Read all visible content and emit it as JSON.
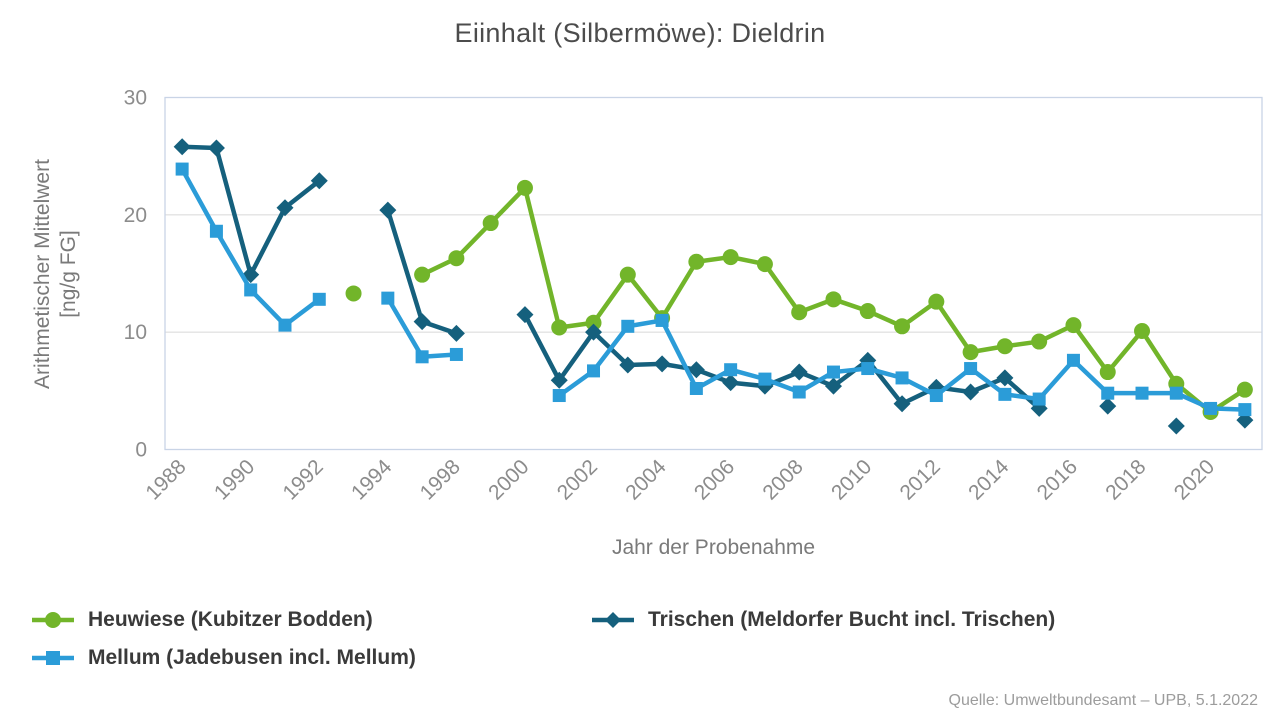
{
  "title": "Eiinhalt (Silbermöwe): Dieldrin",
  "source": "Quelle: Umweltbundesamt – UPB, 5.1.2022",
  "axes": {
    "x_title": "Jahr der Probenahme",
    "y_title_line1": "Arithmetischer Mittelwert",
    "y_title_line2": "[ng/g FG]"
  },
  "colors": {
    "heuwiese_green": "#72b52a",
    "mellum_blue": "#2b9cd8",
    "trischen_darkblue": "#15607d",
    "grid": "#e3e3e3",
    "plot_border": "#c9d4e6",
    "tick_text": "#8c8c8c"
  },
  "chart_data": {
    "type": "line",
    "title": "Eiinhalt (Silbermöwe): Dieldrin",
    "xlabel": "Jahr der Probenahme",
    "ylabel": "Arithmetischer Mittelwert [ng/g FG]",
    "ylim": [
      0,
      30
    ],
    "yticks": [
      0,
      10,
      20,
      30
    ],
    "grid": true,
    "legend_position": "bottom",
    "x_label_every": 2,
    "categories": [
      "1988",
      "1989",
      "1990",
      "1991",
      "1992",
      "1993",
      "1994",
      "1995",
      "1998",
      "1999",
      "2000",
      "2001",
      "2002",
      "2003",
      "2004",
      "2005",
      "2006",
      "2007",
      "2008",
      "2009",
      "2010",
      "2011",
      "2012",
      "2013",
      "2014",
      "2015",
      "2016",
      "2017",
      "2018",
      "2019",
      "2020",
      "2021"
    ],
    "series": [
      {
        "name": "Heuwiese (Kubitzer Bodden)",
        "color": "#72b52a",
        "marker": "circle",
        "values": [
          null,
          null,
          null,
          null,
          null,
          13.3,
          null,
          14.9,
          16.3,
          19.3,
          22.3,
          10.4,
          10.8,
          14.9,
          11.2,
          16.0,
          16.4,
          15.8,
          11.7,
          12.8,
          11.8,
          10.5,
          12.6,
          8.3,
          8.8,
          9.2,
          10.6,
          6.6,
          10.1,
          5.6,
          3.2,
          5.1
        ]
      },
      {
        "name": "Mellum (Jadebusen incl. Mellum)",
        "color": "#2b9cd8",
        "marker": "square",
        "values": [
          23.9,
          18.6,
          13.6,
          10.6,
          12.8,
          null,
          12.9,
          7.9,
          8.1,
          null,
          null,
          4.6,
          6.7,
          10.5,
          11.0,
          5.2,
          6.8,
          6.0,
          4.9,
          6.6,
          6.9,
          6.1,
          4.6,
          6.9,
          4.7,
          4.3,
          7.6,
          4.8,
          4.8,
          4.8,
          3.5,
          3.4
        ]
      },
      {
        "name": "Trischen (Meldorfer Bucht incl. Trischen)",
        "color": "#15607d",
        "marker": "diamond",
        "values": [
          25.8,
          25.7,
          14.9,
          20.6,
          22.9,
          null,
          20.4,
          10.9,
          9.9,
          null,
          11.5,
          5.9,
          10.0,
          7.2,
          7.3,
          6.8,
          5.7,
          5.4,
          6.6,
          5.4,
          7.6,
          3.9,
          5.3,
          4.9,
          6.1,
          3.5,
          null,
          3.7,
          null,
          2.0,
          null,
          2.5
        ]
      }
    ]
  }
}
